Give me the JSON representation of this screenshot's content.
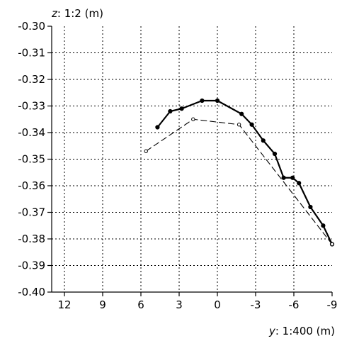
{
  "chart_data": {
    "type": "line",
    "xlabel_var": "y",
    "xlabel_rest": ": 1:400 (m)",
    "ylabel_var": "z",
    "ylabel_rest": ": 1:2 (m)",
    "xlim": [
      13,
      -9
    ],
    "ylim": [
      -0.4,
      -0.3
    ],
    "x_ticks": [
      12,
      9,
      6,
      3,
      0,
      -3,
      -6,
      -9
    ],
    "x_tick_labels": [
      "12",
      "9",
      "6",
      "3",
      "0",
      "-3",
      "-6",
      "-9"
    ],
    "y_ticks": [
      -0.3,
      -0.31,
      -0.32,
      -0.33,
      -0.34,
      -0.35,
      -0.36,
      -0.37,
      -0.38,
      -0.39,
      -0.4
    ],
    "y_tick_labels": [
      "-0.30",
      "-0.31",
      "-0.32",
      "-0.33",
      "-0.34",
      "-0.35",
      "-0.36",
      "-0.37",
      "-0.38",
      "-0.39",
      "-0.40"
    ],
    "grid": true,
    "series": [
      {
        "style": "solid-bold",
        "marker": "filled-circle",
        "color": "#000000",
        "points": [
          [
            4.7,
            -0.338
          ],
          [
            3.7,
            -0.332
          ],
          [
            2.8,
            -0.331
          ],
          [
            1.2,
            -0.328
          ],
          [
            0.0,
            -0.328
          ],
          [
            -1.9,
            -0.333
          ],
          [
            -2.7,
            -0.337
          ],
          [
            -3.6,
            -0.343
          ],
          [
            -4.5,
            -0.348
          ],
          [
            -5.2,
            -0.357
          ],
          [
            -5.9,
            -0.357
          ],
          [
            -6.4,
            -0.359
          ],
          [
            -7.3,
            -0.368
          ],
          [
            -8.3,
            -0.375
          ],
          [
            -9.0,
            -0.382
          ]
        ]
      },
      {
        "style": "dashed-thin",
        "marker": "open-circle",
        "color": "#000000",
        "points": [
          [
            5.6,
            -0.347
          ],
          [
            1.9,
            -0.335
          ],
          [
            -1.7,
            -0.337
          ],
          [
            -9.0,
            -0.382
          ]
        ]
      }
    ]
  }
}
